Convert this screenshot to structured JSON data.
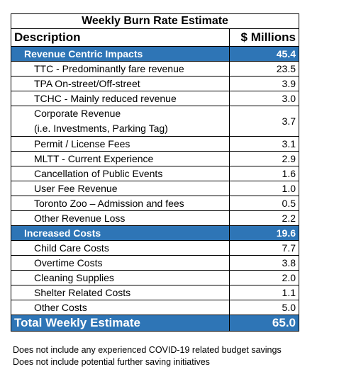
{
  "title": "Weekly Burn Rate Estimate",
  "header": {
    "description": "Description",
    "value": "$ Millions"
  },
  "sections": [
    {
      "label": "Revenue Centric Impacts",
      "value": "45.4",
      "rows": [
        {
          "label": [
            "TTC - Predominantly fare revenue"
          ],
          "value": "23.5"
        },
        {
          "label": [
            "TPA On-street/Off-street"
          ],
          "value": "3.9"
        },
        {
          "label": [
            "TCHC - Mainly reduced revenue"
          ],
          "value": "3.0"
        },
        {
          "label": [
            "Corporate Revenue",
            "(i.e. Investments, Parking Tag)"
          ],
          "value": "3.7"
        },
        {
          "label": [
            "Permit / License Fees"
          ],
          "value": "3.1"
        },
        {
          "label": [
            "MLTT - Current Experience"
          ],
          "value": "2.9"
        },
        {
          "label": [
            "Cancellation of Public Events"
          ],
          "value": "1.6"
        },
        {
          "label": [
            "User Fee Revenue"
          ],
          "value": "1.0"
        },
        {
          "label": [
            "Toronto Zoo – Admission and fees"
          ],
          "value": "0.5"
        },
        {
          "label": [
            "Other Revenue Loss"
          ],
          "value": "2.2"
        }
      ]
    },
    {
      "label": "Increased Costs",
      "value": "19.6",
      "rows": [
        {
          "label": [
            "Child Care Costs"
          ],
          "value": "7.7"
        },
        {
          "label": [
            "Overtime Costs"
          ],
          "value": "3.8"
        },
        {
          "label": [
            "Cleaning Supplies"
          ],
          "value": "2.0"
        },
        {
          "label": [
            "Shelter Related Costs"
          ],
          "value": "1.1"
        },
        {
          "label": [
            "Other Costs"
          ],
          "value": "5.0"
        }
      ]
    }
  ],
  "total": {
    "label": "Total Weekly Estimate",
    "value": "65.0"
  },
  "notes": [
    "Does not include any experienced COVID-19 related budget savings",
    "Does not include potential further saving initiatives"
  ]
}
